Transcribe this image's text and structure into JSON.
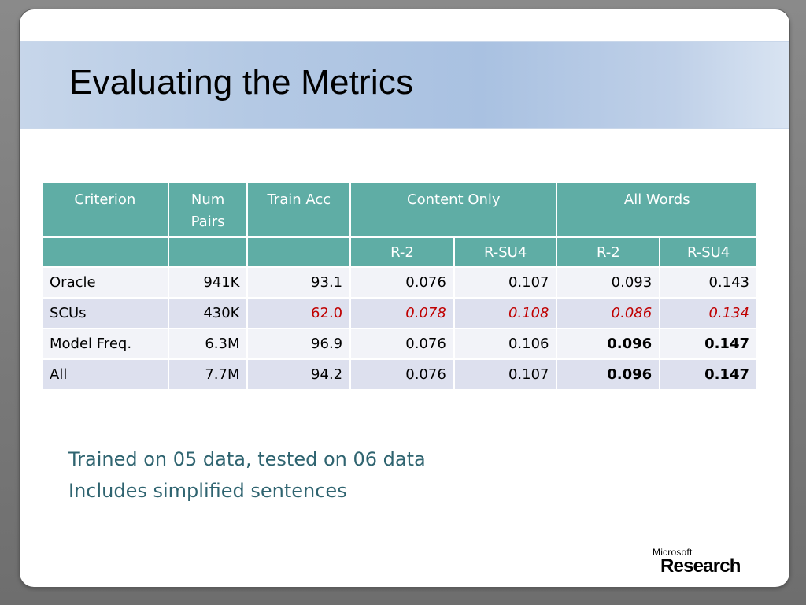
{
  "slide": {
    "title": "Evaluating the Metrics",
    "notes": [
      "Trained on 05 data, tested on 06 data",
      "Includes simplified sentences"
    ],
    "logo": {
      "line1": "Microsoft",
      "line2": "Research"
    }
  },
  "table": {
    "header1": {
      "criterion": "Criterion",
      "num_pairs_line1": "Num",
      "num_pairs_line2": "Pairs",
      "train_acc": "Train Acc",
      "content_only": "Content Only",
      "all_words": "All Words"
    },
    "header2": {
      "co_r2": "R-2",
      "co_rsu4": "R-SU4",
      "aw_r2": "R-2",
      "aw_rsu4": "R-SU4"
    },
    "rows": [
      {
        "criterion": "Oracle",
        "num_pairs": "941K",
        "train_acc": "93.1",
        "co_r2": "0.076",
        "co_rsu4": "0.107",
        "aw_r2": "0.093",
        "aw_rsu4": "0.143"
      },
      {
        "criterion": "SCUs",
        "num_pairs": "430K",
        "train_acc": "62.0",
        "co_r2": "0.078",
        "co_rsu4": "0.108",
        "aw_r2": "0.086",
        "aw_rsu4": "0.134"
      },
      {
        "criterion": "Model Freq.",
        "num_pairs": "6.3M",
        "train_acc": "96.9",
        "co_r2": "0.076",
        "co_rsu4": "0.106",
        "aw_r2": "0.096",
        "aw_rsu4": "0.147"
      },
      {
        "criterion": "All",
        "num_pairs": "7.7M",
        "train_acc": "94.2",
        "co_r2": "0.076",
        "co_rsu4": "0.107",
        "aw_r2": "0.096",
        "aw_rsu4": "0.147"
      }
    ]
  },
  "colors": {
    "header_bg": "#5fada5",
    "row_light": "#f2f3f8",
    "row_dark": "#dde0ee",
    "highlight_red": "#c00000",
    "notes_text": "#2f6470"
  }
}
